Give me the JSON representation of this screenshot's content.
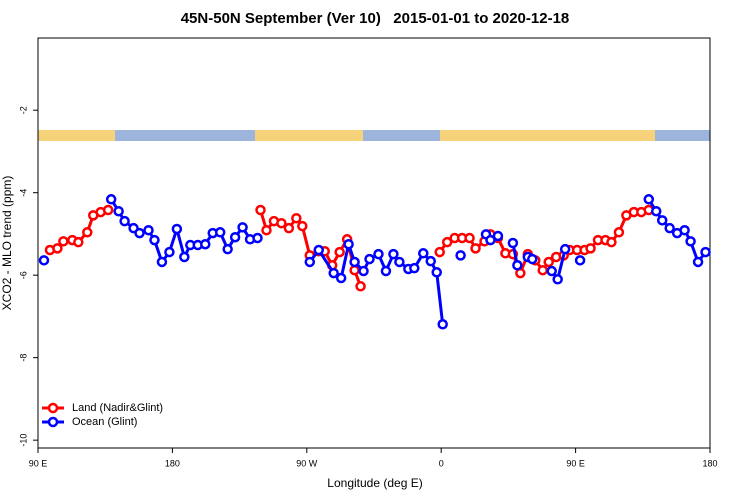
{
  "chart_data": {
    "type": "line",
    "title": "45N-50N September (Ver 10)   2015-01-01 to 2020-12-18",
    "x_label": "Longitude (deg E)",
    "y_label": "XCO2 - MLO trend (ppm)",
    "xlim": [
      90,
      540
    ],
    "ylim": [
      -10.19,
      -0.25
    ],
    "xticks": [
      {
        "value": 90,
        "label": "90 E"
      },
      180,
      {
        "value": 270,
        "label": "90 W"
      },
      {
        "value": 360,
        "label": "0"
      },
      {
        "value": 450,
        "label": "90 E"
      },
      {
        "value": 540,
        "label": "180"
      }
    ],
    "yticks": [
      -2,
      -4,
      -6,
      -8,
      -10
    ],
    "legend": "bottom-left",
    "series": [
      {
        "name": "Land (Nadir&Glint)",
        "color": "#ff0000",
        "x": [
          98,
          103,
          107,
          113,
          117,
          123,
          127,
          132,
          137,
          null,
          239,
          243,
          248,
          253,
          258,
          263,
          267,
          272,
          278,
          282,
          287,
          292,
          297,
          302,
          306,
          null,
          359,
          364,
          369,
          374,
          379,
          383,
          389,
          393,
          398,
          403,
          408,
          413,
          418,
          423,
          428,
          432,
          437,
          442,
          446,
          451,
          456,
          460,
          465,
          470,
          474,
          479,
          484,
          489,
          494,
          499
        ],
        "values": [
          -5.39,
          -5.35,
          -5.18,
          -5.15,
          -5.2,
          -4.96,
          -4.55,
          -4.47,
          -4.42,
          null,
          -4.42,
          -4.91,
          -4.69,
          -4.74,
          -4.86,
          -4.62,
          -4.81,
          -5.52,
          -5.42,
          -5.42,
          -5.76,
          -5.44,
          -5.13,
          -5.88,
          -6.27,
          null,
          -5.44,
          -5.2,
          -5.1,
          -5.1,
          -5.1,
          -5.35,
          -5.18,
          -5.01,
          -5.1,
          -5.47,
          -5.49,
          -5.95,
          -5.49,
          -5.64,
          -5.88,
          -5.68,
          -5.56,
          -5.52,
          -5.39,
          -5.39,
          -5.39,
          -5.35,
          -5.15,
          -5.15,
          -5.2,
          -4.96,
          -4.55,
          -4.47,
          -4.47,
          -4.42
        ]
      },
      {
        "name": "Ocean (Glint)",
        "color": "#0000ff",
        "x": [
          94,
          null,
          139,
          144,
          148,
          154,
          158,
          164,
          168,
          173,
          178,
          183,
          188,
          192,
          197,
          202,
          207,
          212,
          217,
          222,
          227,
          232,
          237,
          null,
          272,
          278,
          288,
          293,
          298,
          302,
          308,
          312,
          318,
          323,
          328,
          332,
          338,
          342,
          348,
          353,
          357,
          361,
          null,
          373,
          null,
          390,
          393,
          398,
          null,
          408,
          411,
          null,
          418,
          421,
          null,
          434,
          438,
          443,
          null,
          453,
          null,
          499,
          504,
          508,
          513,
          518,
          523,
          527,
          532,
          537
        ],
        "values": [
          -5.64,
          null,
          -4.16,
          -4.45,
          -4.69,
          -4.86,
          -4.98,
          -4.91,
          -5.15,
          -5.68,
          -5.44,
          -4.88,
          -5.56,
          -5.27,
          -5.27,
          -5.25,
          -4.98,
          -4.96,
          -5.37,
          -5.08,
          -4.84,
          -5.13,
          -5.1,
          null,
          -5.68,
          -5.39,
          -5.95,
          -6.07,
          -5.25,
          -5.68,
          -5.9,
          -5.61,
          -5.49,
          -5.9,
          -5.49,
          -5.68,
          -5.85,
          -5.83,
          -5.47,
          -5.66,
          -5.93,
          -7.19,
          null,
          -5.52,
          null,
          -5.01,
          -5.15,
          -5.05,
          null,
          -5.22,
          -5.76,
          null,
          -5.56,
          -5.61,
          null,
          -5.9,
          -6.1,
          -5.37,
          null,
          -5.64,
          null,
          -4.16,
          -4.45,
          -4.67,
          -4.86,
          -4.98,
          -4.91,
          -5.18,
          -5.68,
          -5.44
        ]
      }
    ]
  }
}
